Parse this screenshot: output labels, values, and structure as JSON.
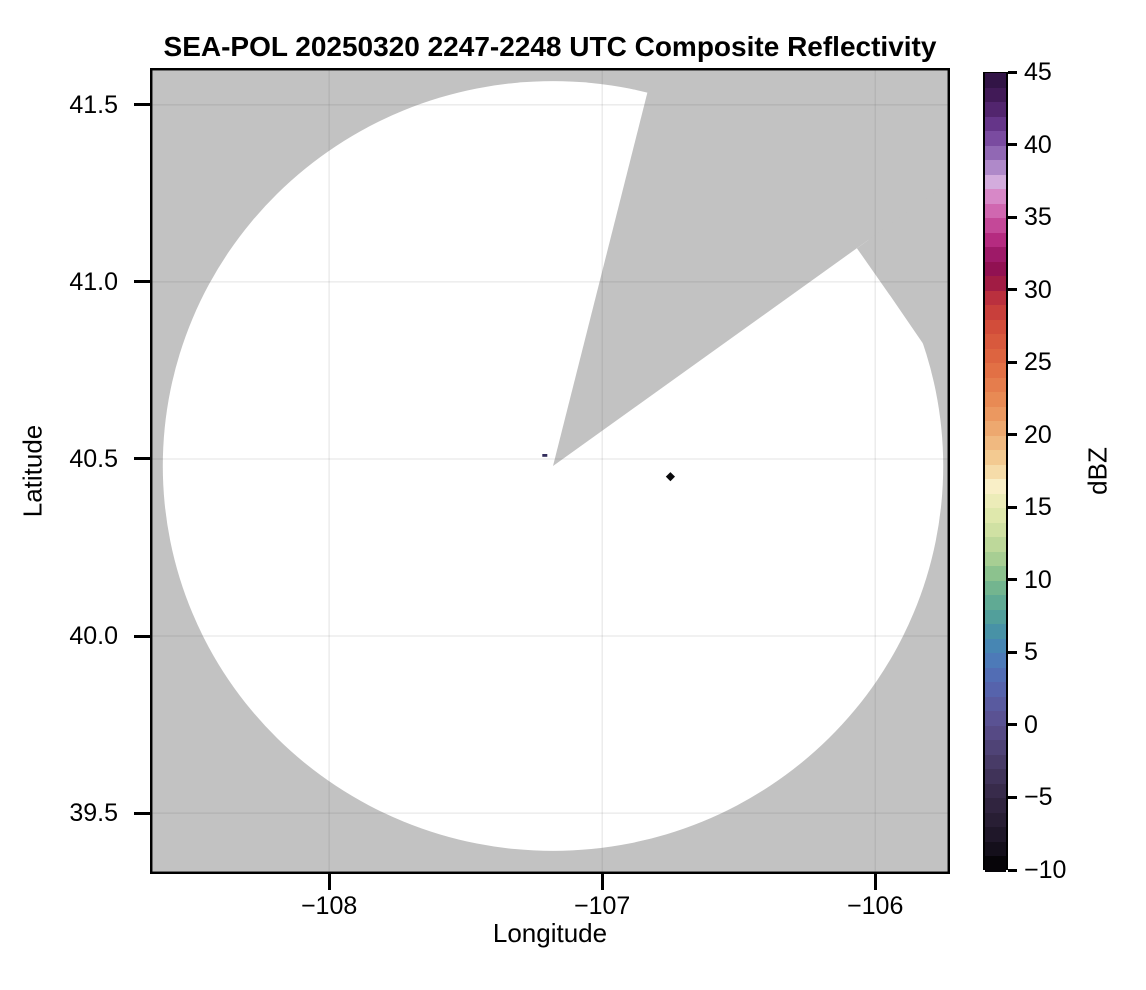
{
  "figure": {
    "background": "#ffffff"
  },
  "chart_data": {
    "type": "radar_ppi_map",
    "title": "SEA-POL 20250320 2247-2248 UTC Composite Reflectivity",
    "xlabel": "Longitude",
    "ylabel": "Latitude",
    "x_range": [
      -108.656,
      -105.726
    ],
    "y_range": [
      39.328,
      41.604
    ],
    "x_ticks": [
      -108,
      -107,
      -106
    ],
    "x_tick_labels": [
      "−108",
      "−107",
      "−106"
    ],
    "y_ticks": [
      41.5,
      41.0,
      40.5,
      40.0,
      39.5
    ],
    "y_tick_labels": [
      "41.5",
      "41.0",
      "40.5",
      "40.0",
      "39.5"
    ],
    "grid": true,
    "colors": {
      "outside_scan": "#c2c2c2",
      "scanned_clear": "#ffffff",
      "gridline": "rgba(85,85,85,0.13)",
      "frame": "#000000"
    },
    "radar": {
      "center_lon": -107.18,
      "center_lat": 40.48,
      "range_km": 121,
      "blocked_sector_azimuth_deg": [
        14,
        54
      ],
      "partial_blockage": {
        "azimuths_deg": [
          54,
          63,
          73
        ],
        "inner_range_km": [
          116.5,
          117.5,
          122
        ]
      }
    },
    "echoes": [
      {
        "lon": -107.21,
        "lat": 40.51,
        "dbz": -3,
        "color": "#322c5c",
        "shape": "dash"
      },
      {
        "lon": -106.75,
        "lat": 40.45,
        "dbz": -10,
        "color": "#0a0a0c",
        "shape": "diamond"
      }
    ],
    "colorbar": {
      "label": "dBZ",
      "min": -10,
      "max": 45,
      "step_dbz": 1,
      "ticks": [
        45,
        40,
        35,
        30,
        25,
        20,
        15,
        10,
        5,
        0,
        -5,
        -10
      ],
      "tick_labels": [
        "45",
        "40",
        "35",
        "30",
        "25",
        "20",
        "15",
        "10",
        "5",
        "0",
        "−5",
        "−10"
      ],
      "stops": [
        [
          -10,
          "#000000"
        ],
        [
          -8,
          "#1b1424"
        ],
        [
          -5,
          "#342744"
        ],
        [
          -2,
          "#4c3f6e"
        ],
        [
          0,
          "#594e8c"
        ],
        [
          1,
          "#5a5599"
        ],
        [
          3,
          "#5567b2"
        ],
        [
          5,
          "#4a80ba"
        ],
        [
          6,
          "#438cab"
        ],
        [
          8,
          "#57a596"
        ],
        [
          10,
          "#7cba8d"
        ],
        [
          11,
          "#9cc98f"
        ],
        [
          13,
          "#c8dd9e"
        ],
        [
          15,
          "#e6ebb1"
        ],
        [
          16.5,
          "#f9efc7"
        ],
        [
          18,
          "#f4d29a"
        ],
        [
          20,
          "#eeb077"
        ],
        [
          22,
          "#ea9058"
        ],
        [
          25,
          "#e06a41"
        ],
        [
          28,
          "#cf4739"
        ],
        [
          30,
          "#b3283f"
        ],
        [
          31,
          "#8e1048"
        ],
        [
          32,
          "#93125c"
        ],
        [
          33.5,
          "#b52b80"
        ],
        [
          35,
          "#cc57a4"
        ],
        [
          36.5,
          "#d788c7"
        ],
        [
          37.5,
          "#d3acdd"
        ],
        [
          38,
          "#c19bd4"
        ],
        [
          39,
          "#9d76bd"
        ],
        [
          40,
          "#8459aa"
        ],
        [
          41,
          "#6f3d96"
        ],
        [
          43,
          "#481d60"
        ],
        [
          45,
          "#2b113d"
        ]
      ]
    }
  }
}
